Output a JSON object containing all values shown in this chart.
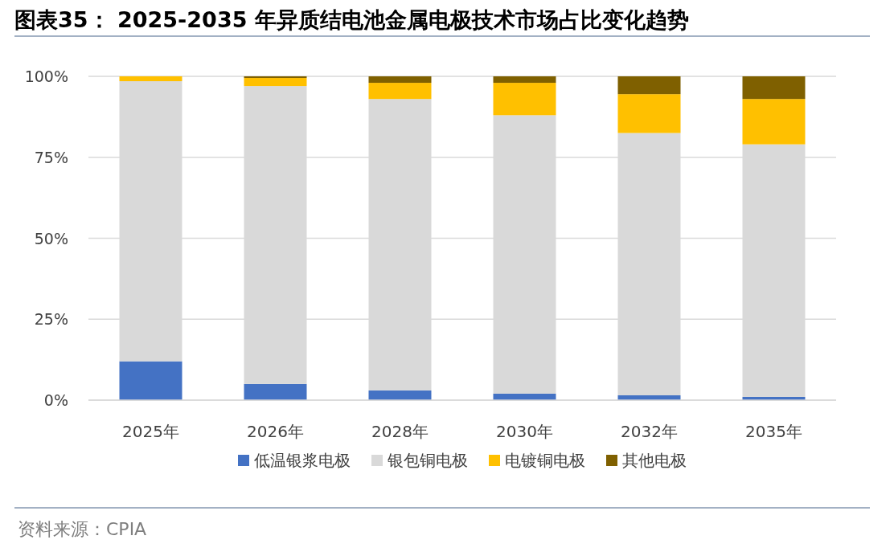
{
  "chart_data": {
    "type": "bar",
    "stacked": true,
    "title": "图表35： 2025-2035 年异质结电池金属电极技术市场占比变化趋势",
    "categories": [
      "2025年",
      "2026年",
      "2028年",
      "2030年",
      "2032年",
      "2035年"
    ],
    "series": [
      {
        "name": "低温银浆电极",
        "color": "#4472c4",
        "values": [
          12,
          5,
          3,
          2,
          1.5,
          1
        ]
      },
      {
        "name": "银包铜电极",
        "color": "#d9d9d9",
        "values": [
          86.5,
          92,
          90,
          86,
          81,
          78
        ]
      },
      {
        "name": "电镀铜电极",
        "color": "#ffc000",
        "values": [
          1.5,
          2.5,
          5,
          10,
          12,
          14
        ]
      },
      {
        "name": "其他电极",
        "color": "#7f6000",
        "values": [
          0,
          0.5,
          2,
          2,
          5.5,
          7
        ]
      }
    ],
    "ylim": [
      0,
      100
    ],
    "yticks": [
      {
        "value": 0,
        "label": "0%"
      },
      {
        "value": 25,
        "label": "25%"
      },
      {
        "value": 50,
        "label": "50%"
      },
      {
        "value": 75,
        "label": "75%"
      },
      {
        "value": 100,
        "label": "100%"
      }
    ],
    "grid": "y",
    "legend": "bottom",
    "annotations": [
      "资料来源：CPIA"
    ]
  }
}
